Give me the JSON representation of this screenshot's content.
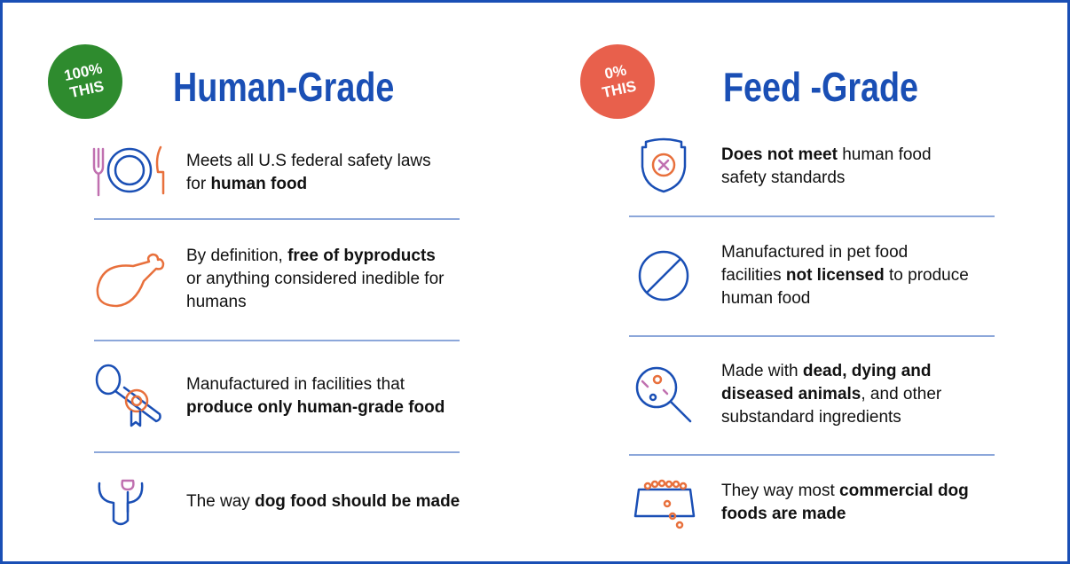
{
  "left": {
    "badge": [
      "100%",
      "THIS"
    ],
    "title": "Human-Grade",
    "items": [
      [
        [
          {
            "text": "Meets all U.S federal safety laws",
            "bold": false
          }
        ],
        [
          {
            "text": "for ",
            "bold": false
          },
          {
            "text": "human food",
            "bold": true
          }
        ]
      ],
      [
        [
          {
            "text": "By definition, ",
            "bold": false
          },
          {
            "text": "free of byproducts",
            "bold": true
          }
        ],
        [
          {
            "text": "or anything considered inedible for",
            "bold": false
          }
        ],
        [
          {
            "text": "humans",
            "bold": false
          }
        ]
      ],
      [
        [
          {
            "text": "Manufactured in facilities that",
            "bold": false
          }
        ],
        [
          {
            "text": "produce only human-grade food",
            "bold": true
          }
        ]
      ],
      [
        [
          {
            "text": "The way ",
            "bold": false
          },
          {
            "text": "dog food should be made",
            "bold": true
          }
        ]
      ]
    ]
  },
  "right": {
    "badge": [
      "0%",
      "THIS"
    ],
    "title": "Feed -Grade",
    "items": [
      [
        [
          {
            "text": "Does not meet",
            "bold": true
          },
          {
            "text": " human food",
            "bold": false
          }
        ],
        [
          {
            "text": "safety standards",
            "bold": false
          }
        ]
      ],
      [
        [
          {
            "text": "Manufactured in pet food",
            "bold": false
          }
        ],
        [
          {
            "text": "facilities ",
            "bold": false
          },
          {
            "text": "not licensed",
            "bold": true
          },
          {
            "text": " to produce",
            "bold": false
          }
        ],
        [
          {
            "text": "human food",
            "bold": false
          }
        ]
      ],
      [
        [
          {
            "text": "Made with ",
            "bold": false
          },
          {
            "text": "dead, dying and",
            "bold": true
          }
        ],
        [
          {
            "text": "diseased animals",
            "bold": true
          },
          {
            "text": ", and other",
            "bold": false
          }
        ],
        [
          {
            "text": "substandard ingredients",
            "bold": false
          }
        ]
      ],
      [
        [
          {
            "text": "They way most ",
            "bold": false
          },
          {
            "text": "commercial dog",
            "bold": true
          }
        ],
        [
          {
            "text": "foods are made",
            "bold": true
          }
        ]
      ]
    ]
  }
}
